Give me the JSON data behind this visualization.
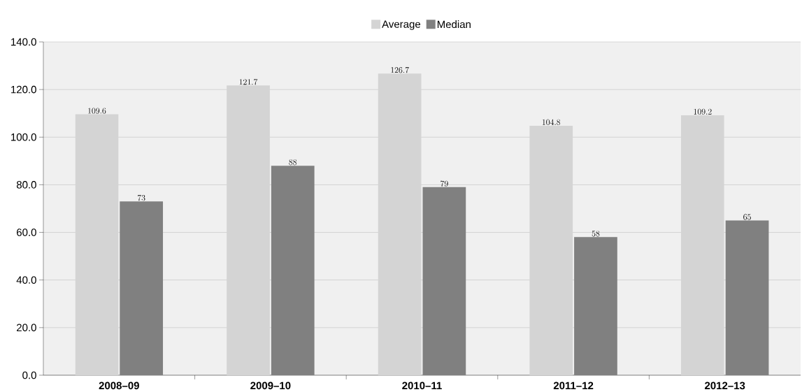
{
  "chart_data": {
    "type": "bar",
    "categories": [
      "2008–09",
      "2009–10",
      "2010–11",
      "2011–12",
      "2012–13"
    ],
    "series": [
      {
        "name": "Average",
        "color": "#d4d4d4",
        "values": [
          109.6,
          121.7,
          126.7,
          104.8,
          109.2
        ]
      },
      {
        "name": "Median",
        "color": "#808080",
        "values": [
          73,
          88,
          79,
          58,
          65
        ]
      }
    ],
    "ylim": [
      0,
      140
    ],
    "yticks": [
      {
        "value": 0,
        "label": "0.0"
      },
      {
        "value": 20,
        "label": "20.0"
      },
      {
        "value": 40,
        "label": "40.0"
      },
      {
        "value": 60,
        "label": "60.0"
      },
      {
        "value": 80,
        "label": "80.0"
      },
      {
        "value": 100,
        "label": "100.0"
      },
      {
        "value": 120,
        "label": "120.0"
      },
      {
        "value": 140,
        "label": "140.0"
      }
    ],
    "grid": "y",
    "legend": "top",
    "data_labels": true
  }
}
